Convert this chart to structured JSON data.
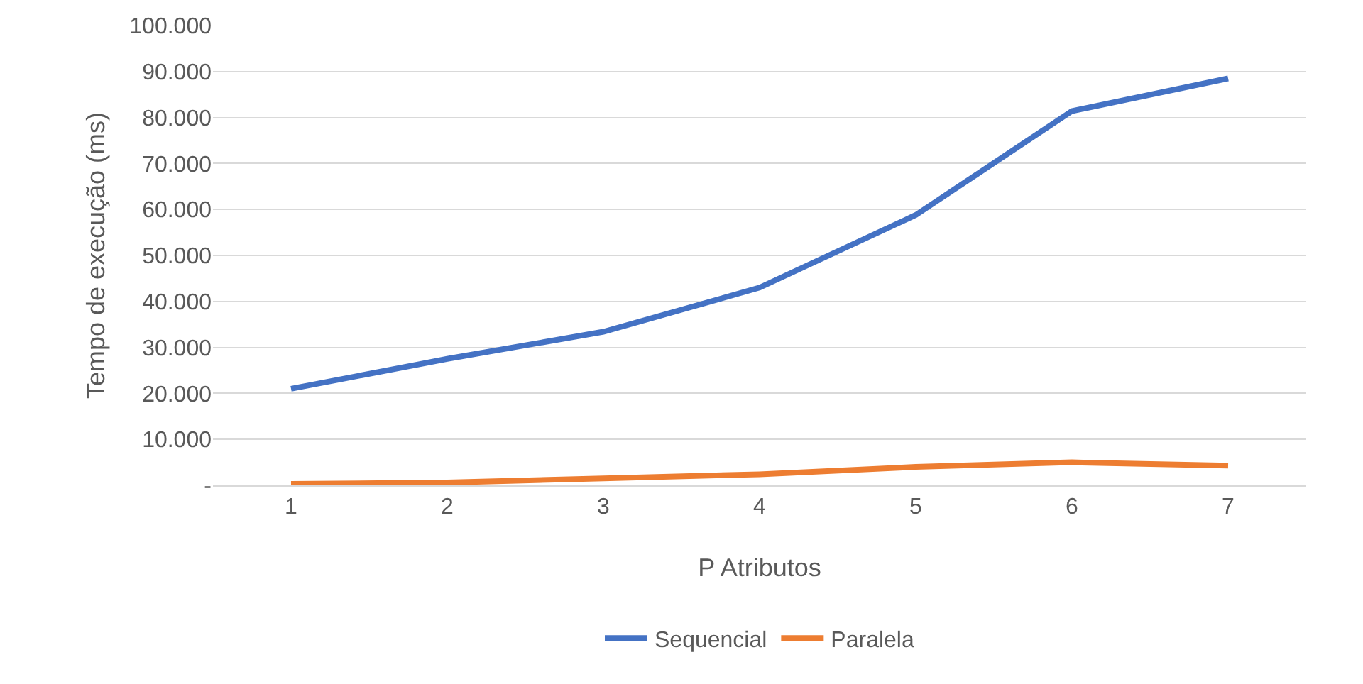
{
  "chart_data": {
    "type": "line",
    "xlabel": "P Atributos",
    "ylabel": "Tempo de execução (ms)",
    "categories": [
      "1",
      "2",
      "3",
      "4",
      "5",
      "6",
      "7"
    ],
    "series": [
      {
        "name": "Sequencial",
        "color": "#4472c4",
        "values": [
          21000,
          27500,
          33400,
          43000,
          58800,
          81400,
          88500
        ]
      },
      {
        "name": "Paralela",
        "color": "#ed7d31",
        "values": [
          300,
          600,
          1500,
          2400,
          4000,
          5000,
          4300
        ]
      }
    ],
    "ylim": [
      0,
      100000
    ],
    "yticks": [
      {
        "value": 0,
        "label": "-"
      },
      {
        "value": 10000,
        "label": "10.000"
      },
      {
        "value": 20000,
        "label": "20.000"
      },
      {
        "value": 30000,
        "label": "30.000"
      },
      {
        "value": 40000,
        "label": "40.000"
      },
      {
        "value": 50000,
        "label": "50.000"
      },
      {
        "value": 60000,
        "label": "60.000"
      },
      {
        "value": 70000,
        "label": "70.000"
      },
      {
        "value": 80000,
        "label": "80.000"
      },
      {
        "value": 90000,
        "label": "90.000"
      },
      {
        "value": 100000,
        "label": "100.000"
      }
    ],
    "grid": "y",
    "legend": "bottom",
    "marker": "none",
    "line_style": "solid"
  }
}
